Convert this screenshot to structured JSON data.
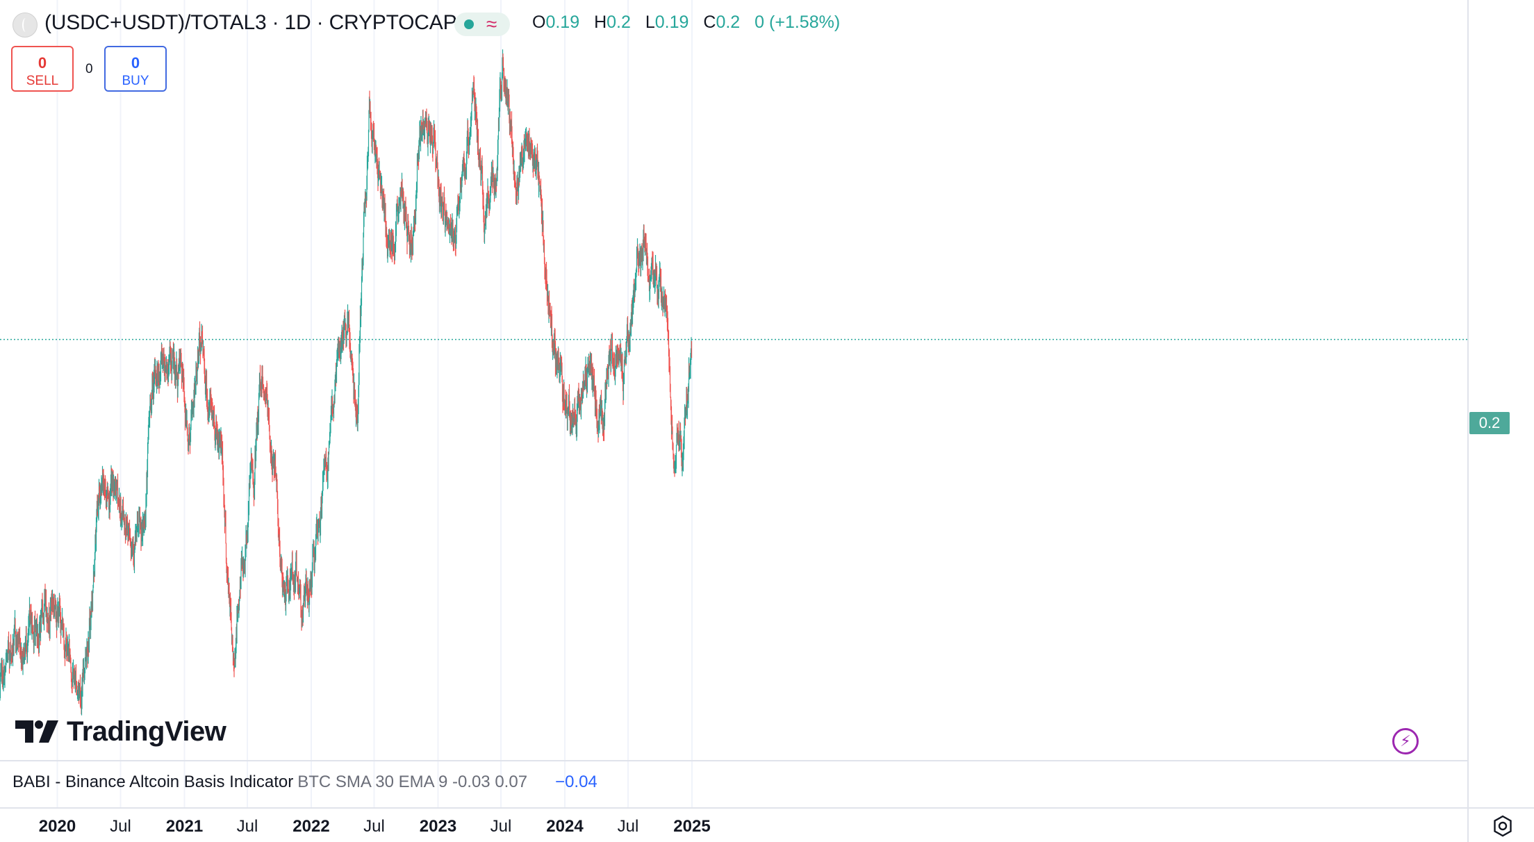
{
  "header": {
    "title": "(USDC+USDT)/TOTAL3 · 1D · CRYPTOCAP",
    "ohlc": {
      "o_label": "O",
      "o": "0.19",
      "h_label": "H",
      "h": "0.2",
      "l_label": "L",
      "l": "0.19",
      "c_label": "C",
      "c": "0.2",
      "change": "0 (+1.58%)"
    }
  },
  "trade": {
    "sell_count": "0",
    "sell_label": "SELL",
    "spread": "0",
    "buy_count": "0",
    "buy_label": "BUY"
  },
  "price_label": "0.2",
  "logo_text": "TradingView",
  "indicator": {
    "name": "BABI - Binance Altcoin Basis Indicator",
    "params": "BTC SMA 30 EMA 9 -0.03 0.07",
    "value": "−0.04"
  },
  "x_ticks": [
    {
      "label": "2020",
      "bold": true,
      "date": "2020-01-01"
    },
    {
      "label": "Jul",
      "bold": false,
      "date": "2020-07-01"
    },
    {
      "label": "2021",
      "bold": true,
      "date": "2021-01-01"
    },
    {
      "label": "Jul",
      "bold": false,
      "date": "2021-07-01"
    },
    {
      "label": "2022",
      "bold": true,
      "date": "2022-01-01"
    },
    {
      "label": "Jul",
      "bold": false,
      "date": "2022-07-01"
    },
    {
      "label": "2023",
      "bold": true,
      "date": "2023-01-01"
    },
    {
      "label": "Jul",
      "bold": false,
      "date": "2023-07-01"
    },
    {
      "label": "2024",
      "bold": true,
      "date": "2024-01-01"
    },
    {
      "label": "Jul",
      "bold": false,
      "date": "2024-07-01"
    },
    {
      "label": "2025",
      "bold": true,
      "date": "2025-01-01"
    }
  ],
  "colors": {
    "up": "#26a69a",
    "down": "#ef5350",
    "grid": "#f0f3fa",
    "price_line": "#26a69a",
    "indicator_value": "#2962ff"
  },
  "chart_data": {
    "type": "candlestick",
    "title": "(USDC+USDT)/TOTAL3",
    "interval": "1D",
    "exchange": "CRYPTOCAP",
    "last_price": 0.2,
    "ylim": [
      0.088,
      0.284
    ],
    "x": [
      "2019-07-20",
      "2019-09-01",
      "2019-11-01",
      "2019-12-15",
      "2020-03-10",
      "2020-04-01",
      "2020-05-01",
      "2020-06-01",
      "2020-07-15",
      "2020-09-01",
      "2020-10-01",
      "2020-11-01",
      "2020-12-15",
      "2021-01-15",
      "2021-02-20",
      "2021-03-15",
      "2021-04-15",
      "2021-05-10",
      "2021-05-20",
      "2021-06-15",
      "2021-07-15",
      "2021-08-15",
      "2021-09-15",
      "2021-10-15",
      "2021-11-15",
      "2021-12-15",
      "2022-01-15",
      "2022-02-15",
      "2022-03-20",
      "2022-04-15",
      "2022-05-12",
      "2022-06-05",
      "2022-06-18",
      "2022-07-15",
      "2022-08-10",
      "2022-09-15",
      "2022-10-15",
      "2022-11-10",
      "2022-12-15",
      "2023-01-15",
      "2023-02-15",
      "2023-03-15",
      "2023-04-15",
      "2023-05-15",
      "2023-06-10",
      "2023-07-10",
      "2023-08-15",
      "2023-09-15",
      "2023-10-15",
      "2023-11-15",
      "2023-12-15",
      "2024-01-15",
      "2024-03-10",
      "2024-04-15",
      "2024-05-15",
      "2024-06-15",
      "2024-07-15",
      "2024-08-05",
      "2024-09-15",
      "2024-10-15",
      "2024-11-10",
      "2024-12-05",
      "2024-12-20",
      "2024-12-31"
    ],
    "values": [
      0.1,
      0.114,
      0.118,
      0.127,
      0.102,
      0.12,
      0.155,
      0.158,
      0.15,
      0.142,
      0.185,
      0.195,
      0.19,
      0.175,
      0.2,
      0.18,
      0.173,
      0.128,
      0.11,
      0.135,
      0.16,
      0.19,
      0.165,
      0.128,
      0.132,
      0.125,
      0.14,
      0.165,
      0.195,
      0.2,
      0.185,
      0.235,
      0.265,
      0.248,
      0.225,
      0.24,
      0.23,
      0.255,
      0.26,
      0.235,
      0.225,
      0.248,
      0.27,
      0.235,
      0.245,
      0.275,
      0.25,
      0.255,
      0.25,
      0.21,
      0.192,
      0.178,
      0.19,
      0.177,
      0.195,
      0.19,
      0.21,
      0.225,
      0.215,
      0.21,
      0.17,
      0.167,
      0.185,
      0.2
    ]
  }
}
